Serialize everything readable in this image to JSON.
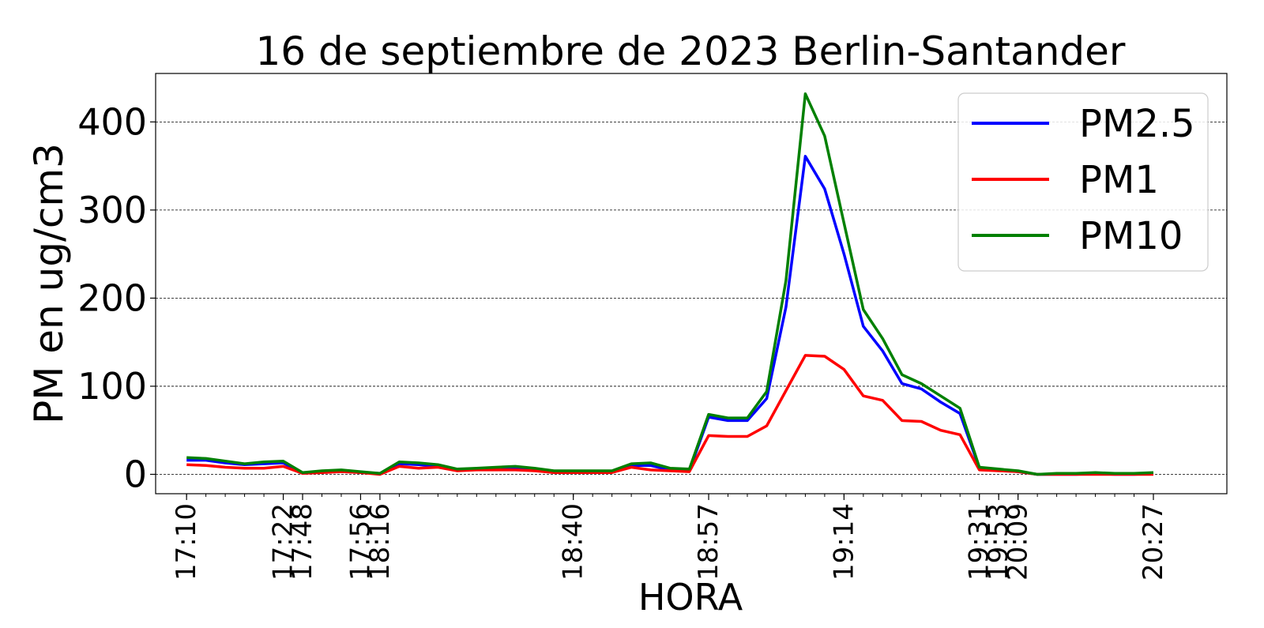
{
  "chart_data": {
    "type": "line",
    "title": "16 de septiembre de 2023 Berlin-Santander",
    "xlabel": "HORA",
    "ylabel": "PM en ug/cm3",
    "ylim": [
      -22,
      455
    ],
    "yticks": [
      0,
      100,
      200,
      300,
      400
    ],
    "grid": "horizontal dashed",
    "legend_position": "top-right",
    "x_index_range": [
      -1.6,
      53.8
    ],
    "xtick_labels": [
      {
        "index": 0,
        "label": "17:10"
      },
      {
        "index": 5,
        "label": "17:22"
      },
      {
        "index": 6,
        "label": "17:48"
      },
      {
        "index": 9,
        "label": "17:56"
      },
      {
        "index": 10,
        "label": "18:16"
      },
      {
        "index": 20,
        "label": "18:40"
      },
      {
        "index": 27,
        "label": "18:57"
      },
      {
        "index": 34,
        "label": "19:14"
      },
      {
        "index": 41,
        "label": "19:31"
      },
      {
        "index": 42,
        "label": "19:53"
      },
      {
        "index": 43,
        "label": "20:09"
      },
      {
        "index": 50,
        "label": "20:27"
      }
    ],
    "series": [
      {
        "name": "PM2.5",
        "color": "#0000ff",
        "values": [
          16,
          16,
          13,
          11,
          12,
          13,
          1,
          3,
          4,
          2,
          1,
          12,
          11,
          9,
          5,
          6,
          6,
          7,
          5,
          3,
          3,
          3,
          3,
          10,
          10,
          5,
          4,
          65,
          61,
          61,
          86,
          190,
          361,
          324,
          250,
          168,
          140,
          103,
          97,
          82,
          69,
          7,
          5,
          3,
          0,
          0,
          0,
          1,
          0,
          0,
          1
        ]
      },
      {
        "name": "PM1",
        "color": "#ff0000",
        "values": [
          11,
          10,
          8,
          7,
          7,
          9,
          1,
          2,
          3,
          2,
          0,
          9,
          7,
          8,
          4,
          5,
          5,
          5,
          4,
          2,
          2,
          2,
          2,
          8,
          5,
          4,
          3,
          44,
          43,
          43,
          55,
          95,
          135,
          134,
          119,
          89,
          84,
          61,
          60,
          50,
          45,
          5,
          4,
          3,
          0,
          0,
          0,
          0,
          0,
          0,
          0
        ]
      },
      {
        "name": "PM10",
        "color": "#008000",
        "values": [
          19,
          18,
          15,
          12,
          14,
          15,
          2,
          4,
          5,
          3,
          1,
          14,
          13,
          11,
          6,
          7,
          8,
          9,
          7,
          4,
          4,
          4,
          4,
          12,
          13,
          7,
          6,
          68,
          64,
          64,
          94,
          220,
          432,
          384,
          285,
          187,
          154,
          113,
          103,
          89,
          75,
          8,
          6,
          4,
          0,
          1,
          1,
          2,
          1,
          1,
          2
        ]
      }
    ]
  }
}
